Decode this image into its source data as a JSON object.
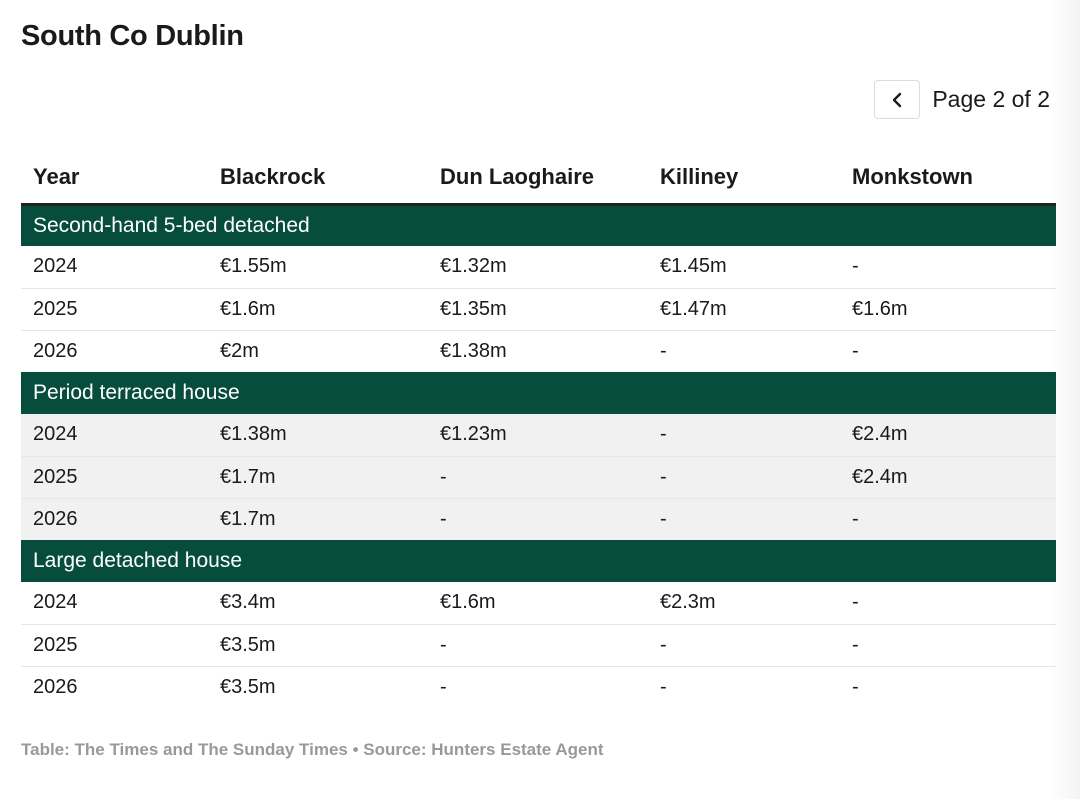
{
  "title": "South Co Dublin",
  "pager": {
    "text": "Page 2 of 2",
    "prev_icon": "chevron-left-icon"
  },
  "table": {
    "headers": [
      "Year",
      "Blackrock",
      "Dun Laoghaire",
      "Killiney",
      "Monkstown"
    ],
    "groups": [
      {
        "label": "Second-hand 5-bed detached",
        "rows": [
          [
            "2024",
            "€1.55m",
            "€1.32m",
            "€1.45m",
            "-"
          ],
          [
            "2025",
            "€1.6m",
            "€1.35m",
            "€1.47m",
            "€1.6m"
          ],
          [
            "2026",
            "€2m",
            "€1.38m",
            "-",
            "-"
          ]
        ]
      },
      {
        "label": "Period terraced house",
        "rows": [
          [
            "2024",
            "€1.38m",
            "€1.23m",
            "-",
            "€2.4m"
          ],
          [
            "2025",
            "€1.7m",
            "-",
            "-",
            "€2.4m"
          ],
          [
            "2026",
            "€1.7m",
            "-",
            "-",
            "-"
          ]
        ]
      },
      {
        "label": "Large detached house",
        "rows": [
          [
            "2024",
            "€3.4m",
            "€1.6m",
            "€2.3m",
            "-"
          ],
          [
            "2025",
            "€3.5m",
            "-",
            "-",
            "-"
          ],
          [
            "2026",
            "€3.5m",
            "-",
            "-",
            "-"
          ]
        ]
      }
    ]
  },
  "footer": "Table: The Times and The Sunday Times • Source: Hunters Estate Agent",
  "colors": {
    "group_band": "#074d3e",
    "shaded_row": "#f1f1f1",
    "footer_text": "#999999"
  }
}
